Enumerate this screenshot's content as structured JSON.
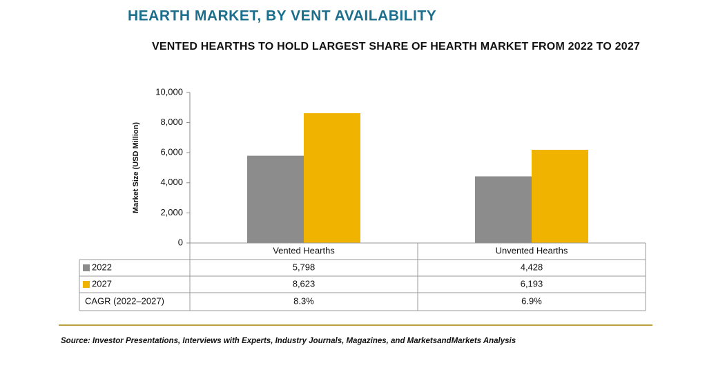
{
  "chart_data": {
    "type": "bar",
    "title": "HEARTH MARKET, BY VENT AVAILABILITY",
    "subtitle": "VENTED HEARTHS TO HOLD LARGEST SHARE OF HEARTH MARKET FROM 2022 TO 2027",
    "y_label": "Market Size (USD Million)",
    "categories": [
      "Vented Hearths",
      "Unvented Hearths"
    ],
    "series": [
      {
        "name": "2022",
        "color": "#8c8c8c",
        "values": [
          5798,
          4428
        ],
        "value_labels": [
          "5,798",
          "4,428"
        ]
      },
      {
        "name": "2027",
        "color": "#f0b400",
        "values": [
          8623,
          6193
        ],
        "value_labels": [
          "8,623",
          "6,193"
        ]
      }
    ],
    "cagr": {
      "label": "CAGR (2022–2027)",
      "values": [
        8.3,
        6.9
      ],
      "value_labels": [
        "8.3%",
        "6.9%"
      ]
    },
    "ylim": [
      0,
      10000
    ],
    "yticks": [
      0,
      {
        "value": 2000,
        "label": "2,000"
      },
      {
        "value": 4000,
        "label": "4,000"
      },
      {
        "value": 6000,
        "label": "6,000"
      },
      {
        "value": 8000,
        "label": "8,000"
      },
      {
        "value": 10000,
        "label": "10,000"
      }
    ],
    "source": "Source: Investor Presentations, Interviews with Experts, Industry Journals, Magazines, and MarketsandMarkets Analysis"
  }
}
